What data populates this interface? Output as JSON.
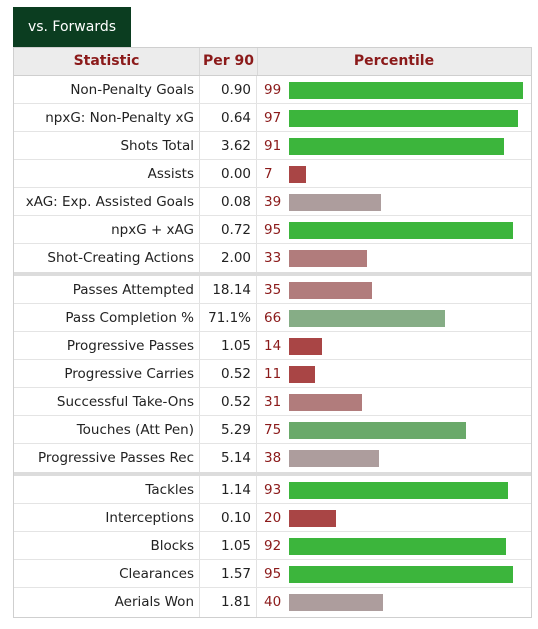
{
  "tab": {
    "label": "vs. Forwards"
  },
  "header": {
    "statistic": "Statistic",
    "per90": "Per 90",
    "percentile": "Percentile"
  },
  "colors": {
    "tab_bg": "#0b3d20",
    "header_text": "#8b1a1a",
    "high": "#3cb53c",
    "mid_high": "#6aa96a",
    "mid": "#86ad86",
    "low_mid": "#ad9d9d",
    "low": "#b17c7c",
    "very_low": "#a94545"
  },
  "groups": [
    [
      {
        "label": "Non-Penalty Goals",
        "value": "0.90",
        "percentile": 99
      },
      {
        "label": "npxG: Non-Penalty xG",
        "value": "0.64",
        "percentile": 97
      },
      {
        "label": "Shots Total",
        "value": "3.62",
        "percentile": 91
      },
      {
        "label": "Assists",
        "value": "0.00",
        "percentile": 7
      },
      {
        "label": "xAG: Exp. Assisted Goals",
        "value": "0.08",
        "percentile": 39
      },
      {
        "label": "npxG + xAG",
        "value": "0.72",
        "percentile": 95
      },
      {
        "label": "Shot-Creating Actions",
        "value": "2.00",
        "percentile": 33
      }
    ],
    [
      {
        "label": "Passes Attempted",
        "value": "18.14",
        "percentile": 35
      },
      {
        "label": "Pass Completion %",
        "value": "71.1%",
        "percentile": 66
      },
      {
        "label": "Progressive Passes",
        "value": "1.05",
        "percentile": 14
      },
      {
        "label": "Progressive Carries",
        "value": "0.52",
        "percentile": 11
      },
      {
        "label": "Successful Take-Ons",
        "value": "0.52",
        "percentile": 31
      },
      {
        "label": "Touches (Att Pen)",
        "value": "5.29",
        "percentile": 75
      },
      {
        "label": "Progressive Passes Rec",
        "value": "5.14",
        "percentile": 38
      }
    ],
    [
      {
        "label": "Tackles",
        "value": "1.14",
        "percentile": 93
      },
      {
        "label": "Interceptions",
        "value": "0.10",
        "percentile": 20
      },
      {
        "label": "Blocks",
        "value": "1.05",
        "percentile": 92
      },
      {
        "label": "Clearances",
        "value": "1.57",
        "percentile": 95
      },
      {
        "label": "Aerials Won",
        "value": "1.81",
        "percentile": 40
      }
    ]
  ]
}
